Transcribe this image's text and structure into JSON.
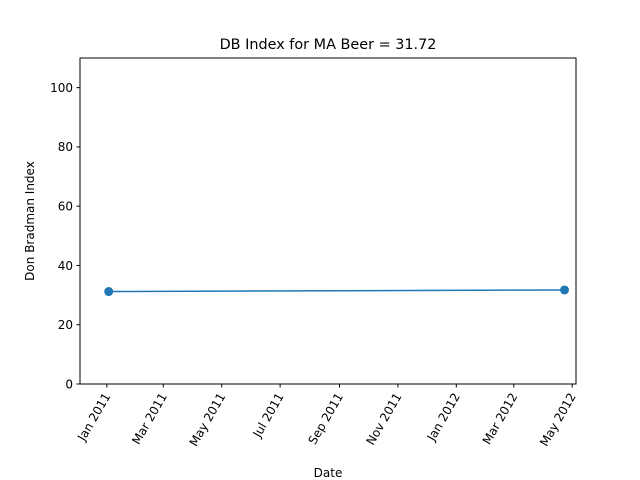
{
  "chart_data": {
    "type": "line",
    "title": "DB Index for MA Beer = 31.72",
    "xlabel": "Date",
    "ylabel": "Don Bradman Index",
    "grid": false,
    "xlim": [
      "2010-12-04",
      "2012-05-05"
    ],
    "ylim": [
      0,
      110
    ],
    "x_ticks": [
      {
        "date": "2011-01-01",
        "label": "Jan 2011"
      },
      {
        "date": "2011-03-01",
        "label": "Mar 2011"
      },
      {
        "date": "2011-05-01",
        "label": "May 2011"
      },
      {
        "date": "2011-07-01",
        "label": "Jul 2011"
      },
      {
        "date": "2011-09-01",
        "label": "Sep 2011"
      },
      {
        "date": "2011-11-01",
        "label": "Nov 2011"
      },
      {
        "date": "2012-01-01",
        "label": "Jan 2012"
      },
      {
        "date": "2012-03-01",
        "label": "Mar 2012"
      },
      {
        "date": "2012-05-01",
        "label": "May 2012"
      }
    ],
    "y_ticks": [
      0,
      20,
      40,
      60,
      80,
      100
    ],
    "series": [
      {
        "color": "#1f77b4",
        "marker": "circle",
        "points": [
          {
            "x": "2011-01-03",
            "y": 31.2
          },
          {
            "x": "2012-04-23",
            "y": 31.72
          }
        ]
      }
    ]
  }
}
